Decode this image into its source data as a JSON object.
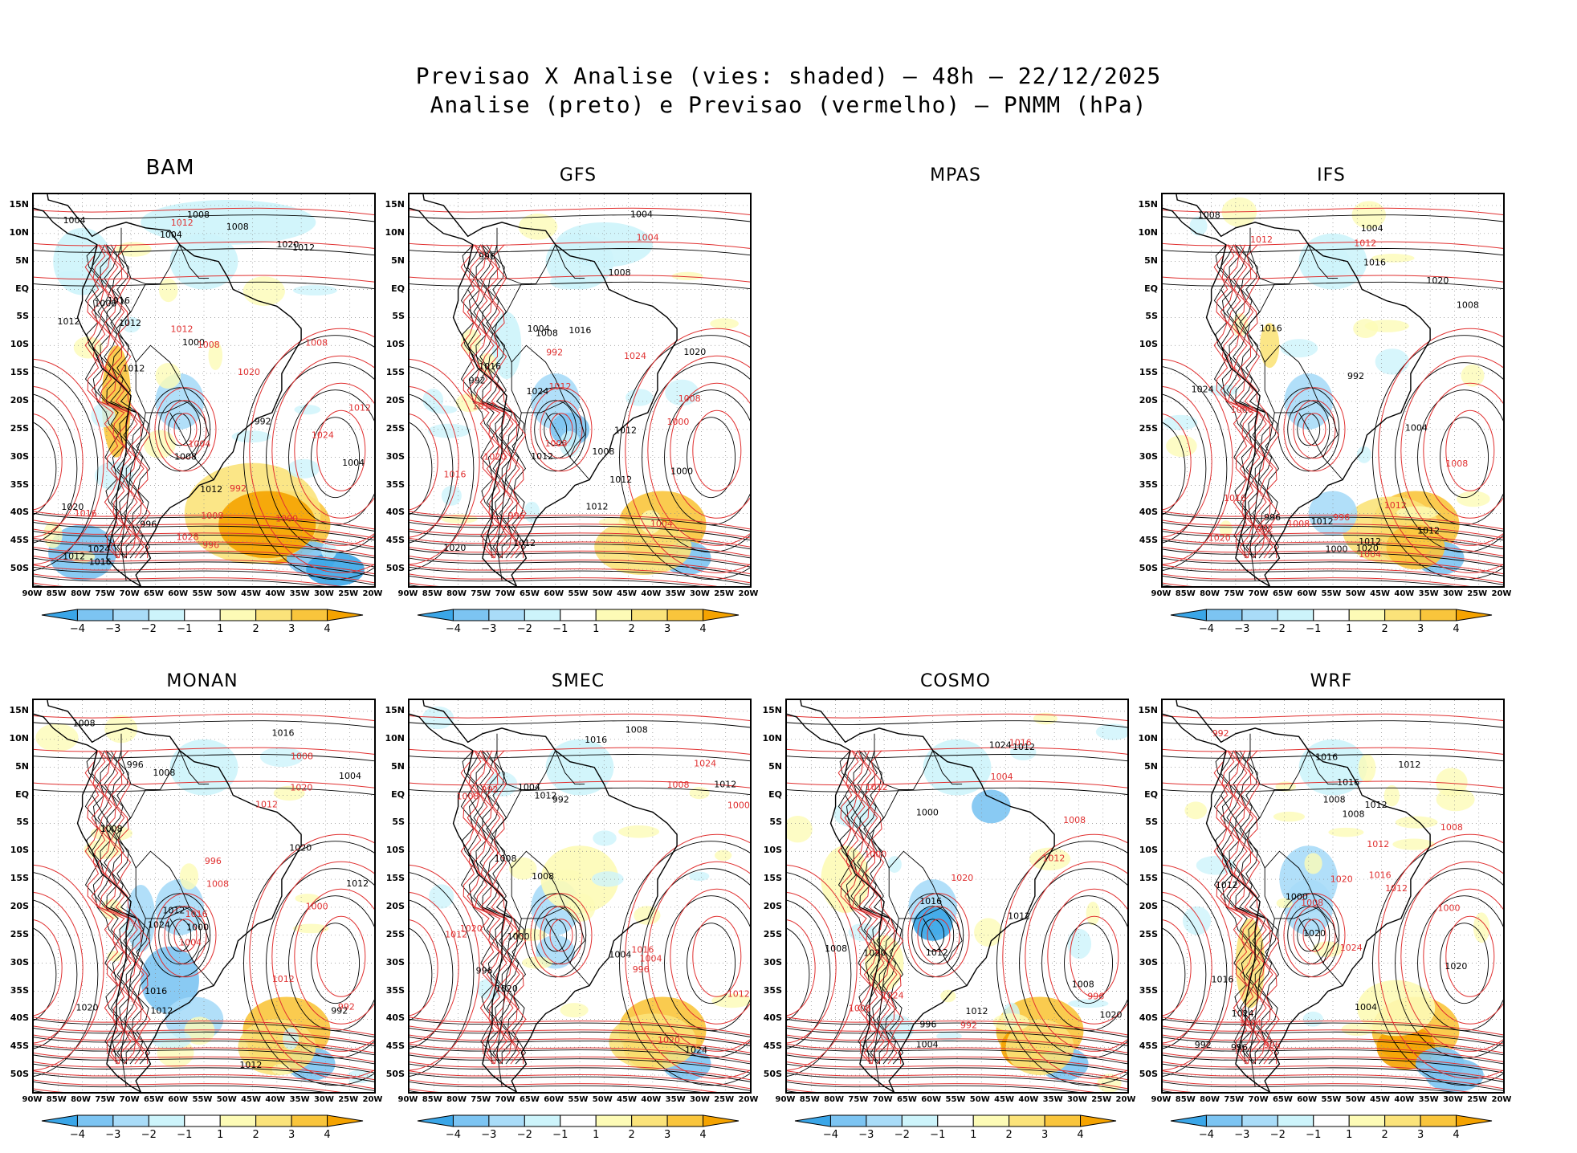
{
  "title": {
    "line1": "Previsao X Analise (vies: shaded) — 48h — 22/12/2025",
    "line2": "Analise (preto) e Previsao (vermelho) — PNMM (hPa)"
  },
  "colors": {
    "analysis": "#000000",
    "forecast": "#e03030",
    "neg4": "#3aa6e8",
    "neg3": "#7cc4f2",
    "neg2": "#a9dcf8",
    "neg1": "#cdf4fb",
    "pos1": "#fdfbb6",
    "pos2": "#fbe37a",
    "pos3": "#f9c53c",
    "pos4": "#f5a300"
  },
  "lat_labels": [
    "15N",
    "10N",
    "5N",
    "EQ",
    "5S",
    "10S",
    "15S",
    "20S",
    "25S",
    "30S",
    "35S",
    "40S",
    "45S",
    "50S"
  ],
  "lon_labels": [
    "90W",
    "85W",
    "80W",
    "75W",
    "70W",
    "65W",
    "60W",
    "55W",
    "50W",
    "45W",
    "40W",
    "35W",
    "30W",
    "25W",
    "20W"
  ],
  "colorbar_labels": [
    "−4",
    "−3",
    "−2",
    "−1",
    "1",
    "2",
    "3",
    "4"
  ],
  "panels": [
    {
      "name": "BAM",
      "has_map": true,
      "analysis_labels": [
        "1016",
        "1012",
        "1012",
        "1012",
        "1008",
        "1012",
        "1012",
        "1016",
        "1020",
        "1024",
        "1008",
        "1004",
        "1000",
        "1004",
        "1008",
        "996",
        "992",
        "1012",
        "1020",
        "1004",
        "1008"
      ],
      "forecast_labels": [
        "1012",
        "1012",
        "1008",
        "1008",
        "1016",
        "1020",
        "1024",
        "1028",
        "1008",
        "1004",
        "1000",
        "996",
        "992",
        "1012"
      ]
    },
    {
      "name": "GFS",
      "has_map": true,
      "analysis_labels": [
        "1016",
        "1012",
        "1012",
        "1012",
        "1012",
        "1008",
        "1012",
        "1016",
        "1020",
        "1024",
        "1008",
        "1004",
        "1000",
        "996",
        "992",
        "1020",
        "1004",
        "1008"
      ],
      "forecast_labels": [
        "1012",
        "1008",
        "1016",
        "1020",
        "1024",
        "1008",
        "1004",
        "1000",
        "996",
        "992",
        "1012",
        "1004"
      ]
    },
    {
      "name": "MPAS",
      "has_map": false,
      "analysis_labels": [],
      "forecast_labels": []
    },
    {
      "name": "IFS",
      "has_map": true,
      "analysis_labels": [
        "1016",
        "1012",
        "1012",
        "1012",
        "1008",
        "1016",
        "1020",
        "1024",
        "1008",
        "1004",
        "1000",
        "996",
        "992",
        "1020",
        "1004"
      ],
      "forecast_labels": [
        "1012",
        "1012",
        "1008",
        "1016",
        "1020",
        "1008",
        "1004",
        "1000",
        "996",
        "992",
        "1012"
      ]
    },
    {
      "name": "MONAN",
      "has_map": true,
      "analysis_labels": [
        "1016",
        "1012",
        "1012",
        "1012",
        "1008",
        "1016",
        "1020",
        "1024",
        "1008",
        "1004",
        "1000",
        "996",
        "992",
        "1020",
        "1012",
        "1008"
      ],
      "forecast_labels": [
        "1012",
        "1012",
        "1008",
        "1016",
        "1020",
        "1008",
        "1004",
        "1000",
        "996",
        "992"
      ]
    },
    {
      "name": "SMEC",
      "has_map": true,
      "analysis_labels": [
        "1012",
        "1012",
        "1008",
        "1016",
        "1020",
        "1024",
        "1008",
        "1004",
        "1000",
        "996",
        "992",
        "1008",
        "1004"
      ],
      "forecast_labels": [
        "1012",
        "1012",
        "1008",
        "1016",
        "1020",
        "1024",
        "1008",
        "1004",
        "1000",
        "996",
        "992",
        "1020"
      ]
    },
    {
      "name": "COSMO",
      "has_map": true,
      "analysis_labels": [
        "1012",
        "1012",
        "1012",
        "1008",
        "1016",
        "1020",
        "1024",
        "1008",
        "1004",
        "1000",
        "996",
        "1020",
        "1012"
      ],
      "forecast_labels": [
        "1012",
        "1012",
        "1008",
        "1016",
        "1020",
        "1024",
        "1008",
        "1004",
        "1000",
        "996",
        "992"
      ]
    },
    {
      "name": "WRF",
      "has_map": true,
      "analysis_labels": [
        "1016",
        "1012",
        "1012",
        "1012",
        "1008",
        "1016",
        "1020",
        "1024",
        "1008",
        "1004",
        "1000",
        "996",
        "992",
        "1020",
        "1016"
      ],
      "forecast_labels": [
        "1012",
        "1012",
        "1008",
        "1016",
        "1020",
        "1024",
        "1008",
        "1004",
        "1000",
        "996",
        "992"
      ]
    }
  ]
}
